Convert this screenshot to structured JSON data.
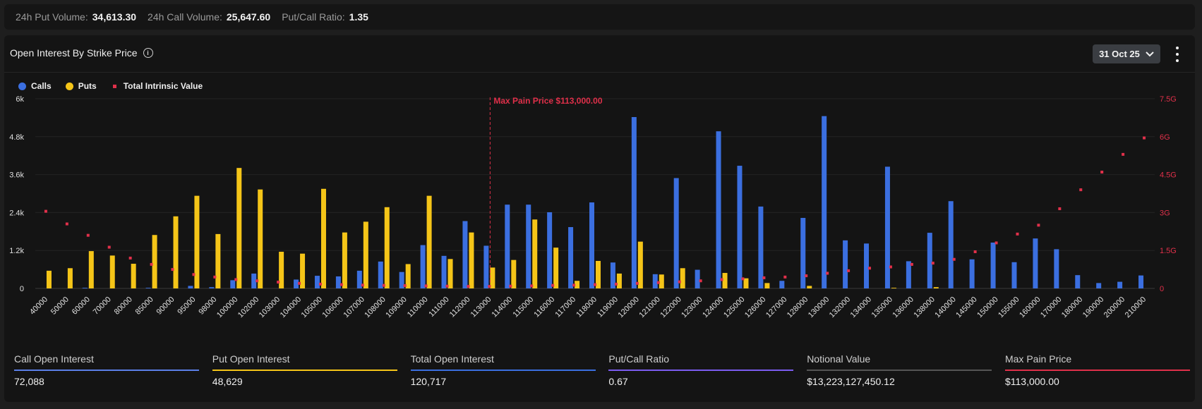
{
  "summary": {
    "put_volume_label": "24h Put Volume:",
    "put_volume": "34,613.30",
    "call_volume_label": "24h Call Volume:",
    "call_volume": "25,647.60",
    "ratio_label": "Put/Call Ratio:",
    "ratio": "1.35"
  },
  "panel": {
    "title": "Open Interest By Strike Price",
    "date_selected": "31 Oct 25"
  },
  "colors": {
    "calls": "#3b6fe0",
    "puts": "#f5c518",
    "intrinsic": "#e0304a"
  },
  "stats": [
    {
      "label": "Call Open Interest",
      "value": "72,088",
      "color": "#5b7fe8"
    },
    {
      "label": "Put Open Interest",
      "value": "48,629",
      "color": "#f5c518"
    },
    {
      "label": "Total Open Interest",
      "value": "120,717",
      "color": "#3b6fe0"
    },
    {
      "label": "Put/Call Ratio",
      "value": "0.67",
      "color": "#7b5cf0"
    },
    {
      "label": "Notional Value",
      "value": "$13,223,127,450.12",
      "color": "#555555"
    },
    {
      "label": "Max Pain Price",
      "value": "$113,000.00",
      "color": "#e0304a"
    }
  ],
  "chart_data": {
    "type": "bar",
    "categories": [
      "40000",
      "50000",
      "60000",
      "70000",
      "80000",
      "85000",
      "90000",
      "95000",
      "98000",
      "100000",
      "102000",
      "103000",
      "104000",
      "105000",
      "106000",
      "107000",
      "108000",
      "109000",
      "110000",
      "111000",
      "112000",
      "113000",
      "114000",
      "115000",
      "116000",
      "117000",
      "118000",
      "119000",
      "120000",
      "121000",
      "122000",
      "123000",
      "124000",
      "125000",
      "126000",
      "127000",
      "128000",
      "130000",
      "132000",
      "134000",
      "135000",
      "136000",
      "138000",
      "140000",
      "145000",
      "150000",
      "155000",
      "160000",
      "170000",
      "180000",
      "190000",
      "200000",
      "210000"
    ],
    "series": [
      {
        "name": "Calls",
        "values": [
          0,
          0,
          20,
          0,
          0,
          20,
          0,
          80,
          40,
          260,
          470,
          0,
          280,
          400,
          380,
          560,
          850,
          520,
          1370,
          1030,
          2130,
          1350,
          2650,
          2650,
          2410,
          1940,
          2720,
          820,
          5420,
          450,
          3490,
          590,
          4970,
          3880,
          2590,
          240,
          2230,
          5450,
          1520,
          1420,
          3850,
          860,
          1760,
          2760,
          920,
          1450,
          830,
          1580,
          1240,
          420,
          170,
          210,
          410
        ]
      },
      {
        "name": "Puts",
        "values": [
          560,
          640,
          1180,
          1040,
          780,
          1690,
          2280,
          2930,
          1720,
          3810,
          3130,
          1160,
          1100,
          3150,
          1770,
          2110,
          2570,
          770,
          2930,
          930,
          1770,
          660,
          900,
          2180,
          1290,
          240,
          870,
          470,
          1480,
          440,
          640,
          0,
          490,
          320,
          170,
          0,
          80,
          0,
          0,
          0,
          20,
          0,
          40,
          0,
          0,
          0,
          0,
          0,
          0,
          0,
          0,
          0,
          0
        ]
      },
      {
        "name": "Total Intrinsic Value",
        "axis": "right",
        "values": [
          3050000000.0,
          2550000000.0,
          2100000000.0,
          1630000000.0,
          1200000000.0,
          950000000.0,
          750000000.0,
          550000000.0,
          450000000.0,
          350000000.0,
          300000000.0,
          250000000.0,
          200000000.0,
          170000000.0,
          150000000.0,
          130000000.0,
          120000000.0,
          110000000.0,
          100000000.0,
          90000000.0,
          80000000.0,
          80000000.0,
          90000000.0,
          100000000.0,
          120000000.0,
          130000000.0,
          150000000.0,
          170000000.0,
          200000000.0,
          230000000.0,
          260000000.0,
          300000000.0,
          350000000.0,
          380000000.0,
          420000000.0,
          450000000.0,
          500000000.0,
          600000000.0,
          700000000.0,
          800000000.0,
          850000000.0,
          950000000.0,
          1000000000.0,
          1150000000.0,
          1450000000.0,
          1800000000.0,
          2150000000.0,
          2500000000.0,
          3150000000.0,
          3900000000.0,
          4600000000.0,
          5300000000.0,
          5950000000.0
        ]
      }
    ],
    "y_ticks": [
      "0",
      "1.2k",
      "2.4k",
      "3.6k",
      "4.8k",
      "6k"
    ],
    "ylim": [
      0,
      6000
    ],
    "y2_ticks": [
      "0",
      "1.5G",
      "3G",
      "4.5G",
      "6G",
      "7.5G"
    ],
    "y2lim": [
      0,
      7500000000
    ],
    "max_pain": {
      "category": "113000",
      "label": "Max Pain Price $113,000.00"
    },
    "legend": [
      "Calls",
      "Puts",
      "Total Intrinsic Value"
    ],
    "legend_position": "top-left",
    "grid": true
  }
}
